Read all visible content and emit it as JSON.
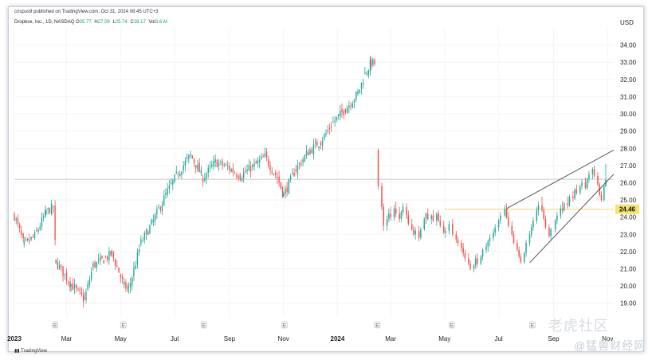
{
  "header": {
    "publish_line": "crispus9 published on TradingView.com, Oct 31, 2024 08:45 UTC+3",
    "symbol": "Dropbox, Inc., 1D, NASDAQ",
    "ohlc": [
      {
        "label": "O",
        "value": "25.77"
      },
      {
        "label": "H",
        "value": "27.09"
      },
      {
        "label": "L",
        "value": "25.74"
      },
      {
        "label": "C",
        "value": "26.17"
      },
      {
        "label": "Vol",
        "value": "3.6 M"
      }
    ],
    "currency": "USD"
  },
  "footer": {
    "logo_text": "TradingView"
  },
  "watermarks": {
    "tiger": "老虎社区",
    "site": "@猛兽财经网"
  },
  "colors": {
    "up": "#26a69a",
    "down": "#ef5350",
    "price_label_bg": "#f5e36b",
    "support_line": "#f0d774",
    "resistance_line": "#c3c7cf",
    "trendline": "#444444"
  },
  "chart_data": {
    "type": "candlestick",
    "title": "",
    "ylim": [
      18.2,
      35.0
    ],
    "y_ticks": [
      19,
      20,
      21,
      22,
      23,
      24,
      25,
      26,
      27,
      28,
      29,
      30,
      31,
      32,
      33,
      34
    ],
    "y_tick_labels": [
      "19.00",
      "20.00",
      "21.00",
      "22.00",
      "23.00",
      "24.00",
      "25.00",
      "26.00",
      "27.00",
      "28.00",
      "29.00",
      "30.00",
      "31.00",
      "32.00",
      "33.00",
      "34.00"
    ],
    "x_domain": [
      "2023-01-01",
      "2024-11-08"
    ],
    "x_ticks": [
      {
        "label": "2023",
        "date": "2023-01-01",
        "bold": true
      },
      {
        "label": "Mar",
        "date": "2023-03-01",
        "bold": false
      },
      {
        "label": "May",
        "date": "2023-05-01",
        "bold": false
      },
      {
        "label": "Jul",
        "date": "2023-07-01",
        "bold": false
      },
      {
        "label": "Sep",
        "date": "2023-09-01",
        "bold": false
      },
      {
        "label": "Nov",
        "date": "2023-11-01",
        "bold": false
      },
      {
        "label": "2024",
        "date": "2024-01-01",
        "bold": true
      },
      {
        "label": "Mar",
        "date": "2024-03-01",
        "bold": false
      },
      {
        "label": "May",
        "date": "2024-05-01",
        "bold": false
      },
      {
        "label": "Jul",
        "date": "2024-07-01",
        "bold": false
      },
      {
        "label": "Sep",
        "date": "2024-09-01",
        "bold": false
      },
      {
        "label": "Nov",
        "date": "2024-11-01",
        "bold": false
      }
    ],
    "earnings_markers": [
      "2023-02-16",
      "2023-05-04",
      "2023-08-03",
      "2023-11-02",
      "2024-02-15",
      "2024-05-09",
      "2024-08-08"
    ],
    "earnings_marker_label": "E",
    "path": [
      [
        "2023-01-01",
        24.1
      ],
      [
        "2023-01-12",
        22.4
      ],
      [
        "2023-01-24",
        22.9
      ],
      [
        "2023-02-06",
        24.3
      ],
      [
        "2023-02-14",
        24.6
      ],
      [
        "2023-02-17",
        21.4
      ],
      [
        "2023-03-06",
        20.1
      ],
      [
        "2023-03-21",
        19.2
      ],
      [
        "2023-03-31",
        21.2
      ],
      [
        "2023-04-14",
        21.6
      ],
      [
        "2023-04-21",
        21.9
      ],
      [
        "2023-05-05",
        20.0
      ],
      [
        "2023-05-10",
        19.8
      ],
      [
        "2023-05-24",
        22.5
      ],
      [
        "2023-06-07",
        23.8
      ],
      [
        "2023-06-21",
        25.3
      ],
      [
        "2023-07-05",
        26.6
      ],
      [
        "2023-07-19",
        27.6
      ],
      [
        "2023-08-02",
        26.3
      ],
      [
        "2023-08-16",
        27.2
      ],
      [
        "2023-08-30",
        26.9
      ],
      [
        "2023-09-13",
        26.4
      ],
      [
        "2023-09-27",
        26.9
      ],
      [
        "2023-10-11",
        27.5
      ],
      [
        "2023-10-25",
        26.3
      ],
      [
        "2023-11-01",
        25.3
      ],
      [
        "2023-11-15",
        26.8
      ],
      [
        "2023-11-29",
        27.8
      ],
      [
        "2023-12-13",
        28.4
      ],
      [
        "2023-12-27",
        29.5
      ],
      [
        "2024-01-10",
        30.3
      ],
      [
        "2024-01-24",
        31.2
      ],
      [
        "2024-02-01",
        32.3
      ],
      [
        "2024-02-08",
        33.0
      ],
      [
        "2024-02-14",
        32.9
      ]
    ],
    "path_seed": 7,
    "candles": [
      [
        "2024-02-16",
        27.9,
        28.0,
        25.6,
        25.8
      ],
      [
        "2024-02-20",
        25.8,
        26.0,
        24.4,
        24.6
      ],
      [
        "2024-02-22",
        24.6,
        24.8,
        23.2,
        23.5
      ],
      [
        "2024-02-26",
        23.5,
        24.1,
        23.2,
        23.9
      ],
      [
        "2024-02-28",
        23.9,
        24.5,
        23.7,
        24.2
      ],
      [
        "2024-03-01",
        24.2,
        24.6,
        23.8,
        24.0
      ],
      [
        "2024-03-05",
        24.0,
        24.7,
        23.8,
        24.5
      ],
      [
        "2024-03-07",
        24.5,
        24.9,
        24.0,
        24.2
      ],
      [
        "2024-03-11",
        24.2,
        24.6,
        23.7,
        23.9
      ],
      [
        "2024-03-13",
        23.9,
        24.4,
        23.7,
        24.3
      ],
      [
        "2024-03-15",
        24.3,
        24.8,
        24.1,
        24.6
      ],
      [
        "2024-03-19",
        24.6,
        24.8,
        23.9,
        24.1
      ],
      [
        "2024-03-21",
        24.1,
        24.4,
        23.5,
        23.6
      ],
      [
        "2024-03-25",
        23.6,
        23.9,
        23.2,
        23.3
      ],
      [
        "2024-03-27",
        23.3,
        23.5,
        22.9,
        23.0
      ],
      [
        "2024-03-29",
        23.0,
        23.4,
        22.7,
        23.2
      ],
      [
        "2024-04-02",
        23.2,
        23.5,
        22.6,
        22.8
      ],
      [
        "2024-04-04",
        22.8,
        23.4,
        22.7,
        23.3
      ],
      [
        "2024-04-08",
        23.3,
        24.0,
        23.2,
        23.9
      ],
      [
        "2024-04-10",
        23.9,
        24.3,
        23.6,
        24.2
      ],
      [
        "2024-04-12",
        24.2,
        24.5,
        23.8,
        23.9
      ],
      [
        "2024-04-16",
        23.9,
        24.2,
        23.6,
        24.1
      ],
      [
        "2024-04-18",
        24.1,
        24.4,
        23.7,
        23.8
      ],
      [
        "2024-04-22",
        23.8,
        24.3,
        23.5,
        24.2
      ],
      [
        "2024-04-24",
        24.2,
        24.4,
        23.7,
        23.8
      ],
      [
        "2024-04-26",
        23.8,
        24.1,
        23.4,
        23.5
      ],
      [
        "2024-04-30",
        23.5,
        23.8,
        23.0,
        23.1
      ],
      [
        "2024-05-02",
        23.1,
        23.4,
        22.8,
        23.2
      ],
      [
        "2024-05-06",
        23.2,
        23.8,
        23.0,
        23.6
      ],
      [
        "2024-05-10",
        23.6,
        23.9,
        22.9,
        23.0
      ],
      [
        "2024-05-14",
        23.0,
        23.2,
        22.5,
        22.7
      ],
      [
        "2024-05-16",
        22.7,
        22.9,
        22.3,
        22.5
      ],
      [
        "2024-05-20",
        22.5,
        22.7,
        22.0,
        22.2
      ],
      [
        "2024-05-22",
        22.2,
        22.5,
        21.7,
        21.9
      ],
      [
        "2024-05-24",
        21.9,
        22.1,
        21.4,
        21.6
      ],
      [
        "2024-05-28",
        21.6,
        21.9,
        21.2,
        21.3
      ],
      [
        "2024-05-30",
        21.3,
        21.5,
        20.9,
        21.0
      ],
      [
        "2024-06-03",
        21.0,
        21.3,
        20.8,
        21.2
      ],
      [
        "2024-06-05",
        21.2,
        21.8,
        21.0,
        21.6
      ],
      [
        "2024-06-07",
        21.6,
        21.9,
        21.1,
        21.3
      ],
      [
        "2024-06-11",
        21.3,
        21.8,
        21.2,
        21.7
      ],
      [
        "2024-06-13",
        21.7,
        22.2,
        21.5,
        22.1
      ],
      [
        "2024-06-17",
        22.1,
        22.5,
        21.9,
        22.3
      ],
      [
        "2024-06-19",
        22.3,
        22.7,
        22.0,
        22.6
      ],
      [
        "2024-06-21",
        22.6,
        23.0,
        22.3,
        22.8
      ],
      [
        "2024-06-25",
        22.8,
        23.3,
        22.6,
        23.1
      ],
      [
        "2024-06-27",
        23.1,
        23.6,
        22.9,
        23.4
      ],
      [
        "2024-07-01",
        23.4,
        23.9,
        23.2,
        23.8
      ],
      [
        "2024-07-03",
        23.8,
        24.3,
        23.6,
        24.1
      ],
      [
        "2024-07-08",
        24.1,
        24.7,
        24.0,
        24.5
      ],
      [
        "2024-07-10",
        24.5,
        24.8,
        23.9,
        24.0
      ],
      [
        "2024-07-12",
        24.0,
        24.3,
        23.4,
        23.5
      ],
      [
        "2024-07-16",
        23.5,
        23.8,
        22.9,
        23.0
      ],
      [
        "2024-07-18",
        23.0,
        23.2,
        22.4,
        22.5
      ],
      [
        "2024-07-22",
        22.5,
        22.7,
        22.0,
        22.1
      ],
      [
        "2024-07-24",
        22.1,
        22.3,
        21.6,
        21.7
      ],
      [
        "2024-07-26",
        21.7,
        21.9,
        21.3,
        21.4
      ],
      [
        "2024-07-30",
        21.4,
        22.0,
        21.3,
        21.9
      ],
      [
        "2024-08-01",
        21.9,
        22.7,
        21.7,
        22.5
      ],
      [
        "2024-08-05",
        22.5,
        23.2,
        22.3,
        23.0
      ],
      [
        "2024-08-07",
        23.0,
        23.6,
        22.8,
        23.4
      ],
      [
        "2024-08-09",
        23.4,
        24.0,
        23.2,
        23.8
      ],
      [
        "2024-08-13",
        23.8,
        24.6,
        23.6,
        24.4
      ],
      [
        "2024-08-15",
        24.4,
        24.9,
        24.1,
        24.7
      ],
      [
        "2024-08-19",
        24.7,
        25.2,
        24.3,
        24.4
      ],
      [
        "2024-08-21",
        24.4,
        24.6,
        23.8,
        23.9
      ],
      [
        "2024-08-23",
        23.9,
        24.1,
        23.3,
        23.4
      ],
      [
        "2024-08-27",
        23.4,
        23.6,
        22.8,
        22.9
      ],
      [
        "2024-08-29",
        22.9,
        23.4,
        22.7,
        23.3
      ],
      [
        "2024-09-03",
        23.3,
        23.9,
        23.1,
        23.8
      ],
      [
        "2024-09-05",
        23.8,
        24.3,
        23.6,
        24.1
      ],
      [
        "2024-09-09",
        24.1,
        24.7,
        23.9,
        24.5
      ],
      [
        "2024-09-11",
        24.5,
        24.9,
        24.2,
        24.4
      ],
      [
        "2024-09-13",
        24.4,
        24.9,
        24.3,
        24.8
      ],
      [
        "2024-09-17",
        24.8,
        25.2,
        24.5,
        24.7
      ],
      [
        "2024-09-19",
        24.7,
        25.3,
        24.6,
        25.2
      ],
      [
        "2024-09-23",
        25.2,
        25.5,
        24.9,
        25.1
      ],
      [
        "2024-09-25",
        25.1,
        25.7,
        25.0,
        25.6
      ],
      [
        "2024-09-27",
        25.6,
        25.9,
        25.3,
        25.4
      ],
      [
        "2024-10-01",
        25.4,
        25.9,
        25.3,
        25.8
      ],
      [
        "2024-10-03",
        25.8,
        26.2,
        25.6,
        26.0
      ],
      [
        "2024-10-07",
        26.0,
        26.3,
        25.6,
        25.7
      ],
      [
        "2024-10-09",
        25.7,
        26.3,
        25.6,
        26.2
      ],
      [
        "2024-10-11",
        26.2,
        26.7,
        26.0,
        26.5
      ],
      [
        "2024-10-15",
        26.5,
        26.9,
        26.2,
        26.8
      ],
      [
        "2024-10-17",
        26.8,
        27.0,
        26.3,
        26.4
      ],
      [
        "2024-10-21",
        26.4,
        26.6,
        25.8,
        25.9
      ],
      [
        "2024-10-23",
        25.9,
        26.0,
        25.2,
        25.3
      ],
      [
        "2024-10-25",
        25.3,
        25.5,
        24.9,
        25.0
      ],
      [
        "2024-10-28",
        25.0,
        25.9,
        24.9,
        25.8
      ],
      [
        "2024-10-30",
        25.77,
        27.09,
        25.74,
        26.17
      ]
    ],
    "horizontal_lines": [
      {
        "name": "resistance",
        "value": 26.2
      },
      {
        "name": "support",
        "value": 24.46,
        "label": "24.46"
      }
    ],
    "trendlines": [
      {
        "name": "channel-upper",
        "from": [
          "2024-07-10",
          24.5
        ],
        "to": [
          "2024-11-08",
          27.9
        ]
      },
      {
        "name": "channel-lower",
        "from": [
          "2024-08-05",
          21.35
        ],
        "to": [
          "2024-11-08",
          26.5
        ]
      }
    ]
  }
}
